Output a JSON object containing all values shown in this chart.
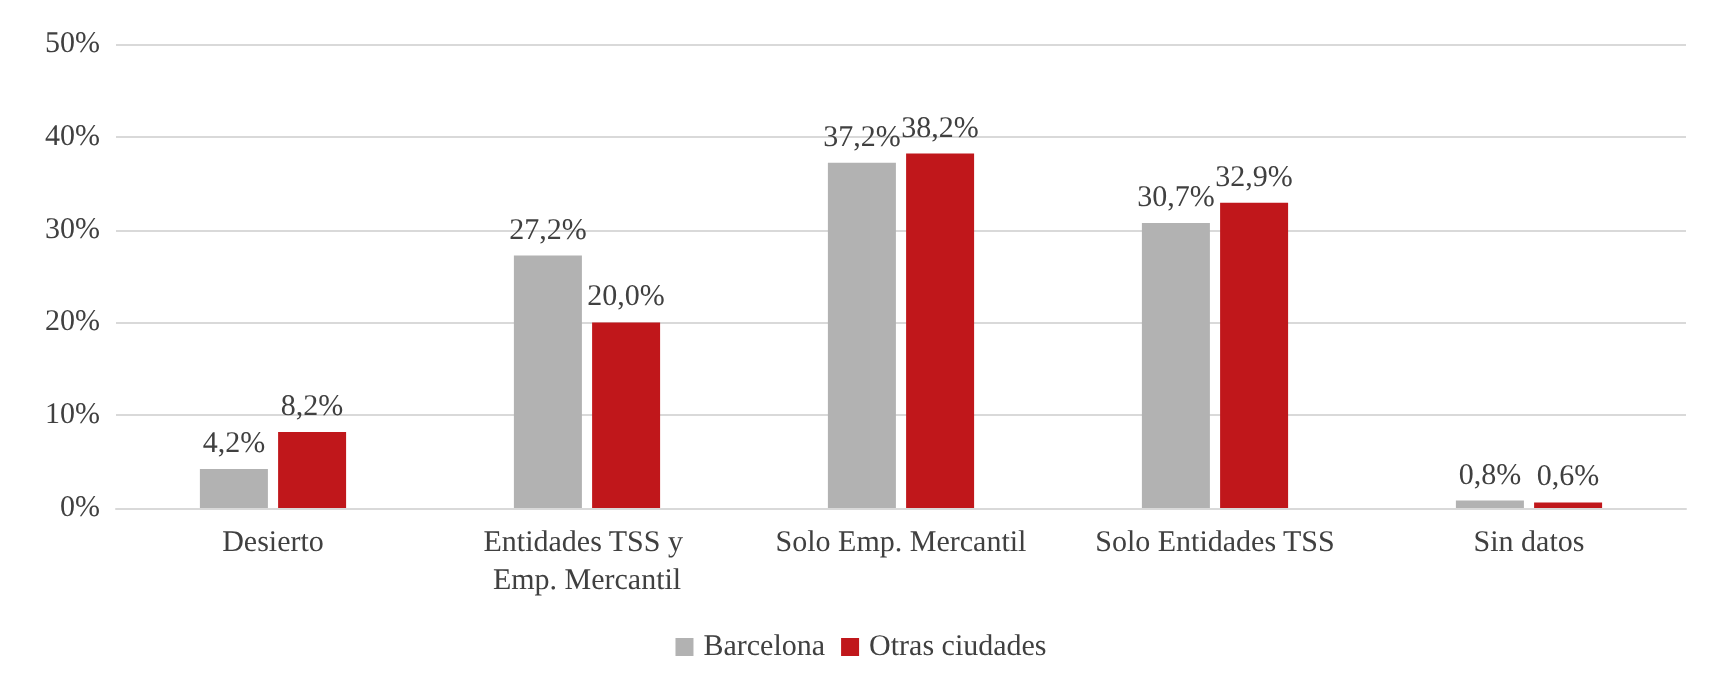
{
  "chart_data": {
    "type": "bar",
    "categories": [
      "Desierto",
      "Entidades TSS y Emp. Mercantil",
      "Solo Emp. Mercantil",
      "Solo Entidades TSS",
      "Sin datos"
    ],
    "series": [
      {
        "name": "Barcelona",
        "color": "#b2b2b2",
        "values": [
          4.2,
          27.2,
          37.2,
          30.7,
          0.8
        ],
        "value_labels": [
          "4,2%",
          "27,2%",
          "37,2%",
          "30,7%",
          "0,8%"
        ]
      },
      {
        "name": "Otras ciudades",
        "color": "#c0171b",
        "values": [
          8.2,
          20.0,
          38.2,
          32.9,
          0.6
        ],
        "value_labels": [
          "8,2%",
          "20,0%",
          "38,2%",
          "32,9%",
          "0,6%"
        ]
      }
    ],
    "ylim": [
      0,
      50
    ],
    "yticks": [
      {
        "value": 0,
        "label": "0%"
      },
      {
        "value": 10,
        "label": "10%"
      },
      {
        "value": 20,
        "label": "20%"
      },
      {
        "value": 30,
        "label": "30%"
      },
      {
        "value": 40,
        "label": "40%"
      },
      {
        "value": 50,
        "label": "50%"
      }
    ],
    "grid": "y",
    "legend": "bottom"
  }
}
